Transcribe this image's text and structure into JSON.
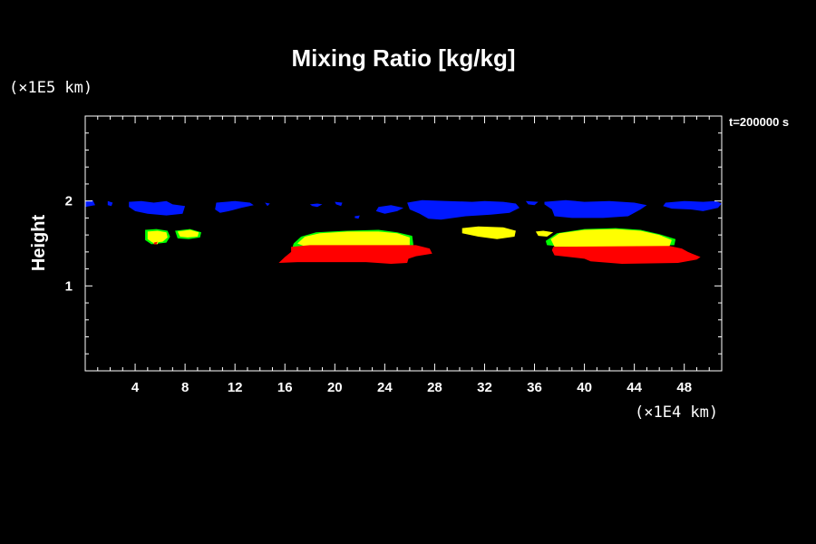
{
  "chart_data": {
    "type": "contour-fill",
    "title": "Mixing Ratio [kg/kg]",
    "xlabel": "",
    "ylabel": "Height",
    "x_unit": "(×1E4 km)",
    "y_unit": "(×1E5 km)",
    "time_label": "t=200000 s",
    "xlim": [
      0,
      51
    ],
    "ylim": [
      0,
      3
    ],
    "x_ticks": [
      4,
      8,
      12,
      16,
      20,
      24,
      28,
      32,
      36,
      40,
      44,
      48
    ],
    "y_ticks": [
      1,
      2
    ],
    "colors": {
      "background": "#000000",
      "axes": "#ffffff",
      "blue": "#0018ff",
      "green": "#00ff00",
      "yellow": "#ffff00",
      "red": "#ff0000"
    },
    "regions": [
      {
        "color": "blue",
        "points": [
          [
            0,
            2.0
          ],
          [
            0.6,
            2.01
          ],
          [
            0.8,
            1.95
          ],
          [
            0,
            1.93
          ]
        ]
      },
      {
        "color": "blue",
        "points": [
          [
            1.8,
            2.0
          ],
          [
            2.2,
            1.98
          ],
          [
            2.1,
            1.94
          ],
          [
            1.8,
            1.95
          ]
        ]
      },
      {
        "color": "blue",
        "points": [
          [
            3.5,
            1.99
          ],
          [
            4.5,
            2.0
          ],
          [
            5.5,
            1.98
          ],
          [
            6.5,
            2.0
          ],
          [
            7.0,
            1.96
          ],
          [
            8.0,
            1.94
          ],
          [
            7.8,
            1.85
          ],
          [
            6.5,
            1.83
          ],
          [
            5.0,
            1.85
          ],
          [
            4.0,
            1.88
          ],
          [
            3.5,
            1.93
          ]
        ]
      },
      {
        "color": "blue",
        "points": [
          [
            10.5,
            1.98
          ],
          [
            12.0,
            2.0
          ],
          [
            13.2,
            1.98
          ],
          [
            13.5,
            1.95
          ],
          [
            12.5,
            1.92
          ],
          [
            11.5,
            1.88
          ],
          [
            10.8,
            1.86
          ],
          [
            10.4,
            1.9
          ]
        ]
      },
      {
        "color": "blue",
        "points": [
          [
            14.4,
            1.98
          ],
          [
            14.8,
            1.97
          ],
          [
            14.6,
            1.94
          ]
        ]
      },
      {
        "color": "blue",
        "points": [
          [
            18.0,
            1.96
          ],
          [
            18.6,
            1.97
          ],
          [
            19.0,
            1.96
          ],
          [
            18.6,
            1.93
          ],
          [
            18.2,
            1.94
          ]
        ]
      },
      {
        "color": "blue",
        "points": [
          [
            20.0,
            1.99
          ],
          [
            20.6,
            1.98
          ],
          [
            20.5,
            1.94
          ],
          [
            20.1,
            1.96
          ]
        ]
      },
      {
        "color": "blue",
        "points": [
          [
            21.6,
            1.82
          ],
          [
            22.0,
            1.83
          ],
          [
            21.9,
            1.79
          ],
          [
            21.6,
            1.8
          ]
        ]
      },
      {
        "color": "blue",
        "points": [
          [
            23.5,
            1.93
          ],
          [
            24.5,
            1.95
          ],
          [
            25.5,
            1.92
          ],
          [
            25.0,
            1.88
          ],
          [
            24.0,
            1.85
          ],
          [
            23.3,
            1.88
          ]
        ]
      },
      {
        "color": "blue",
        "points": [
          [
            25.8,
            1.98
          ],
          [
            27.0,
            2.01
          ],
          [
            29.0,
            2.0
          ],
          [
            31.0,
            1.99
          ],
          [
            32.0,
            2.0
          ],
          [
            33.5,
            1.99
          ],
          [
            34.5,
            1.97
          ],
          [
            34.8,
            1.92
          ],
          [
            34.0,
            1.86
          ],
          [
            32.5,
            1.84
          ],
          [
            30.5,
            1.82
          ],
          [
            28.5,
            1.78
          ],
          [
            27.5,
            1.79
          ],
          [
            26.8,
            1.85
          ],
          [
            26.0,
            1.9
          ]
        ]
      },
      {
        "color": "blue",
        "points": [
          [
            35.3,
            2.0
          ],
          [
            36.3,
            1.99
          ],
          [
            36.0,
            1.95
          ],
          [
            35.5,
            1.96
          ]
        ]
      },
      {
        "color": "blue",
        "points": [
          [
            36.8,
            1.99
          ],
          [
            38.5,
            2.01
          ],
          [
            40.0,
            1.99
          ],
          [
            42.0,
            2.0
          ],
          [
            44.0,
            1.98
          ],
          [
            45.0,
            1.95
          ],
          [
            44.5,
            1.9
          ],
          [
            43.5,
            1.82
          ],
          [
            41.5,
            1.8
          ],
          [
            39.0,
            1.8
          ],
          [
            37.6,
            1.82
          ],
          [
            37.4,
            1.9
          ],
          [
            36.8,
            1.96
          ]
        ]
      },
      {
        "color": "blue",
        "points": [
          [
            46.5,
            1.98
          ],
          [
            48.0,
            2.0
          ],
          [
            49.5,
            1.99
          ],
          [
            50.5,
            2.0
          ],
          [
            51.0,
            1.97
          ],
          [
            50.7,
            1.92
          ],
          [
            49.5,
            1.88
          ],
          [
            48.5,
            1.9
          ],
          [
            47.0,
            1.91
          ],
          [
            46.3,
            1.94
          ]
        ]
      },
      {
        "color": "green",
        "points": [
          [
            4.8,
            1.66
          ],
          [
            5.7,
            1.67
          ],
          [
            6.6,
            1.65
          ],
          [
            6.8,
            1.58
          ],
          [
            6.5,
            1.51
          ],
          [
            5.3,
            1.49
          ],
          [
            4.8,
            1.54
          ]
        ]
      },
      {
        "color": "green",
        "points": [
          [
            7.2,
            1.65
          ],
          [
            8.4,
            1.67
          ],
          [
            9.3,
            1.63
          ],
          [
            9.2,
            1.57
          ],
          [
            8.3,
            1.55
          ],
          [
            7.4,
            1.56
          ]
        ]
      },
      {
        "color": "green",
        "points": [
          [
            16.7,
            1.5
          ],
          [
            17.3,
            1.58
          ],
          [
            18.5,
            1.63
          ],
          [
            21.0,
            1.65
          ],
          [
            23.5,
            1.66
          ],
          [
            25.0,
            1.63
          ],
          [
            26.2,
            1.59
          ],
          [
            26.3,
            1.48
          ],
          [
            25.5,
            1.47
          ],
          [
            18.0,
            1.47
          ],
          [
            16.6,
            1.45
          ]
        ]
      },
      {
        "color": "green",
        "points": [
          [
            36.9,
            1.53
          ],
          [
            37.8,
            1.62
          ],
          [
            40.0,
            1.67
          ],
          [
            42.5,
            1.68
          ],
          [
            44.5,
            1.66
          ],
          [
            46.0,
            1.61
          ],
          [
            47.3,
            1.55
          ],
          [
            47.2,
            1.48
          ],
          [
            38.5,
            1.46
          ],
          [
            37.0,
            1.48
          ]
        ]
      },
      {
        "color": "yellow",
        "points": [
          [
            5.0,
            1.64
          ],
          [
            5.8,
            1.65
          ],
          [
            6.5,
            1.63
          ],
          [
            6.6,
            1.57
          ],
          [
            6.2,
            1.52
          ],
          [
            5.4,
            1.51
          ],
          [
            5.0,
            1.55
          ]
        ]
      },
      {
        "color": "yellow",
        "points": [
          [
            7.4,
            1.64
          ],
          [
            8.4,
            1.66
          ],
          [
            9.1,
            1.63
          ],
          [
            9.0,
            1.58
          ],
          [
            8.2,
            1.57
          ],
          [
            7.6,
            1.58
          ]
        ]
      },
      {
        "color": "yellow",
        "points": [
          [
            17.0,
            1.5
          ],
          [
            17.6,
            1.58
          ],
          [
            18.8,
            1.62
          ],
          [
            21.0,
            1.64
          ],
          [
            23.5,
            1.64
          ],
          [
            25.0,
            1.62
          ],
          [
            26.0,
            1.57
          ],
          [
            26.0,
            1.48
          ],
          [
            17.5,
            1.47
          ]
        ]
      },
      {
        "color": "yellow",
        "points": [
          [
            30.2,
            1.68
          ],
          [
            31.5,
            1.7
          ],
          [
            33.5,
            1.69
          ],
          [
            34.5,
            1.65
          ],
          [
            34.4,
            1.58
          ],
          [
            33.0,
            1.55
          ],
          [
            31.5,
            1.58
          ],
          [
            30.2,
            1.62
          ]
        ]
      },
      {
        "color": "yellow",
        "points": [
          [
            36.1,
            1.64
          ],
          [
            36.7,
            1.65
          ],
          [
            37.5,
            1.63
          ],
          [
            37.0,
            1.58
          ],
          [
            36.3,
            1.59
          ]
        ]
      },
      {
        "color": "yellow",
        "points": [
          [
            37.3,
            1.55
          ],
          [
            38.0,
            1.62
          ],
          [
            40.0,
            1.66
          ],
          [
            42.5,
            1.67
          ],
          [
            44.5,
            1.65
          ],
          [
            46.0,
            1.6
          ],
          [
            47.0,
            1.54
          ],
          [
            46.8,
            1.46
          ],
          [
            37.6,
            1.46
          ]
        ]
      },
      {
        "color": "yellow",
        "points": [
          [
            5.4,
            1.52
          ],
          [
            5.9,
            1.53
          ],
          [
            5.8,
            1.49
          ],
          [
            5.5,
            1.49
          ]
        ]
      },
      {
        "color": "red",
        "points": [
          [
            16.5,
            1.46
          ],
          [
            18.0,
            1.48
          ],
          [
            26.5,
            1.48
          ],
          [
            27.6,
            1.44
          ],
          [
            27.8,
            1.38
          ],
          [
            26.5,
            1.35
          ],
          [
            25.9,
            1.32
          ],
          [
            25.8,
            1.27
          ],
          [
            24.5,
            1.26
          ],
          [
            22.5,
            1.28
          ],
          [
            17.0,
            1.28
          ],
          [
            15.5,
            1.27
          ],
          [
            16.0,
            1.34
          ],
          [
            16.5,
            1.4
          ]
        ]
      },
      {
        "color": "red",
        "points": [
          [
            37.5,
            1.46
          ],
          [
            46.8,
            1.47
          ],
          [
            47.8,
            1.44
          ],
          [
            48.3,
            1.4
          ],
          [
            49.3,
            1.34
          ],
          [
            49.0,
            1.31
          ],
          [
            47.5,
            1.27
          ],
          [
            43.0,
            1.26
          ],
          [
            40.5,
            1.29
          ],
          [
            40.0,
            1.32
          ],
          [
            37.6,
            1.36
          ],
          [
            37.4,
            1.42
          ]
        ]
      },
      {
        "color": "red",
        "points": [
          [
            5.5,
            1.51
          ],
          [
            5.8,
            1.52
          ],
          [
            5.7,
            1.49
          ],
          [
            5.5,
            1.49
          ]
        ]
      }
    ]
  }
}
